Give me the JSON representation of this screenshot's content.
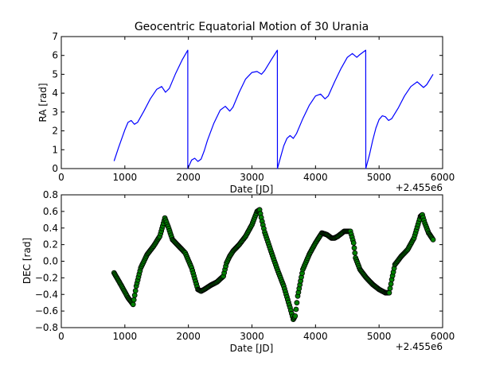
{
  "chart_data": [
    {
      "type": "line",
      "title": "Geocentric Equatorial Motion of 30 Urania",
      "xlabel": "Date [JD]",
      "ylabel": "RA [rad]",
      "x_offset_label": "+2.455e6",
      "xlim": [
        0,
        6000
      ],
      "ylim": [
        0,
        7
      ],
      "xticks": [
        "0",
        "1000",
        "2000",
        "3000",
        "4000",
        "5000",
        "6000"
      ],
      "yticks": [
        "0",
        "1",
        "2",
        "3",
        "4",
        "5",
        "6",
        "7"
      ],
      "grid": false,
      "color": "#0000ff",
      "x": [
        830,
        900,
        1000,
        1050,
        1100,
        1150,
        1200,
        1300,
        1400,
        1500,
        1580,
        1640,
        1700,
        1800,
        1900,
        1990,
        1991,
        2050,
        2100,
        2150,
        2200,
        2250,
        2300,
        2400,
        2500,
        2580,
        2650,
        2700,
        2800,
        2900,
        3000,
        3080,
        3150,
        3200,
        3300,
        3400,
        3401,
        3450,
        3500,
        3550,
        3600,
        3650,
        3700,
        3800,
        3900,
        4000,
        4080,
        4150,
        4200,
        4300,
        4400,
        4500,
        4580,
        4650,
        4700,
        4790,
        4791,
        4850,
        4900,
        4950,
        5000,
        5050,
        5100,
        5150,
        5200,
        5300,
        5400,
        5500,
        5600,
        5650,
        5700,
        5750,
        5850
      ],
      "y": [
        0.4,
        1.1,
        2.05,
        2.45,
        2.55,
        2.35,
        2.45,
        3.05,
        3.7,
        4.2,
        4.35,
        4.05,
        4.25,
        5.05,
        5.75,
        6.28,
        0.0,
        0.45,
        0.55,
        0.38,
        0.5,
        0.95,
        1.5,
        2.4,
        3.1,
        3.3,
        3.05,
        3.25,
        4.05,
        4.75,
        5.1,
        5.15,
        5.0,
        5.2,
        5.75,
        6.28,
        0.0,
        0.6,
        1.2,
        1.6,
        1.75,
        1.6,
        1.85,
        2.65,
        3.35,
        3.85,
        3.95,
        3.7,
        3.85,
        4.6,
        5.3,
        5.9,
        6.1,
        5.9,
        6.05,
        6.28,
        0.0,
        0.75,
        1.5,
        2.15,
        2.6,
        2.8,
        2.75,
        2.55,
        2.65,
        3.2,
        3.85,
        4.35,
        4.6,
        4.45,
        4.3,
        4.45,
        5.0
      ]
    },
    {
      "type": "scatter",
      "xlabel": "Date [JD]",
      "ylabel": "DEC [rad]",
      "x_offset_label": "+2.455e6",
      "xlim": [
        0,
        6000
      ],
      "ylim": [
        -0.8,
        0.8
      ],
      "xticks": [
        "0",
        "1000",
        "2000",
        "3000",
        "4000",
        "5000",
        "6000"
      ],
      "yticks": [
        "−0.8",
        "−0.6",
        "−0.4",
        "−0.2",
        "0.0",
        "0.2",
        "0.4",
        "0.6",
        "0.8"
      ],
      "ytick_values": [
        -0.8,
        -0.6,
        -0.4,
        -0.2,
        0.0,
        0.2,
        0.4,
        0.6,
        0.8
      ],
      "grid": false,
      "color": "#008000",
      "edgecolor": "#000000",
      "x": [
        830,
        950,
        1050,
        1130,
        1180,
        1250,
        1350,
        1450,
        1550,
        1630,
        1680,
        1750,
        1850,
        1950,
        2050,
        2150,
        2200,
        2250,
        2350,
        2450,
        2550,
        2600,
        2650,
        2700,
        2800,
        2900,
        3000,
        3080,
        3120,
        3160,
        3200,
        3300,
        3400,
        3500,
        3600,
        3650,
        3680,
        3720,
        3800,
        3900,
        4000,
        4100,
        4180,
        4250,
        4300,
        4350,
        4450,
        4550,
        4600,
        4630,
        4700,
        4800,
        4900,
        5000,
        5100,
        5160,
        5200,
        5250,
        5350,
        5450,
        5550,
        5650,
        5680,
        5720,
        5780,
        5850
      ],
      "y": [
        -0.14,
        -0.3,
        -0.44,
        -0.52,
        -0.3,
        -0.08,
        0.08,
        0.18,
        0.3,
        0.52,
        0.42,
        0.26,
        0.18,
        0.1,
        -0.08,
        -0.34,
        -0.36,
        -0.34,
        -0.29,
        -0.25,
        -0.18,
        -0.02,
        0.06,
        0.12,
        0.2,
        0.3,
        0.44,
        0.6,
        0.62,
        0.48,
        0.35,
        0.12,
        -0.1,
        -0.3,
        -0.56,
        -0.7,
        -0.66,
        -0.42,
        -0.1,
        0.08,
        0.22,
        0.34,
        0.32,
        0.28,
        0.28,
        0.3,
        0.36,
        0.36,
        0.22,
        0.04,
        -0.1,
        -0.2,
        -0.28,
        -0.34,
        -0.38,
        -0.38,
        -0.22,
        -0.04,
        0.06,
        0.14,
        0.28,
        0.54,
        0.56,
        0.46,
        0.34,
        0.26
      ]
    }
  ]
}
